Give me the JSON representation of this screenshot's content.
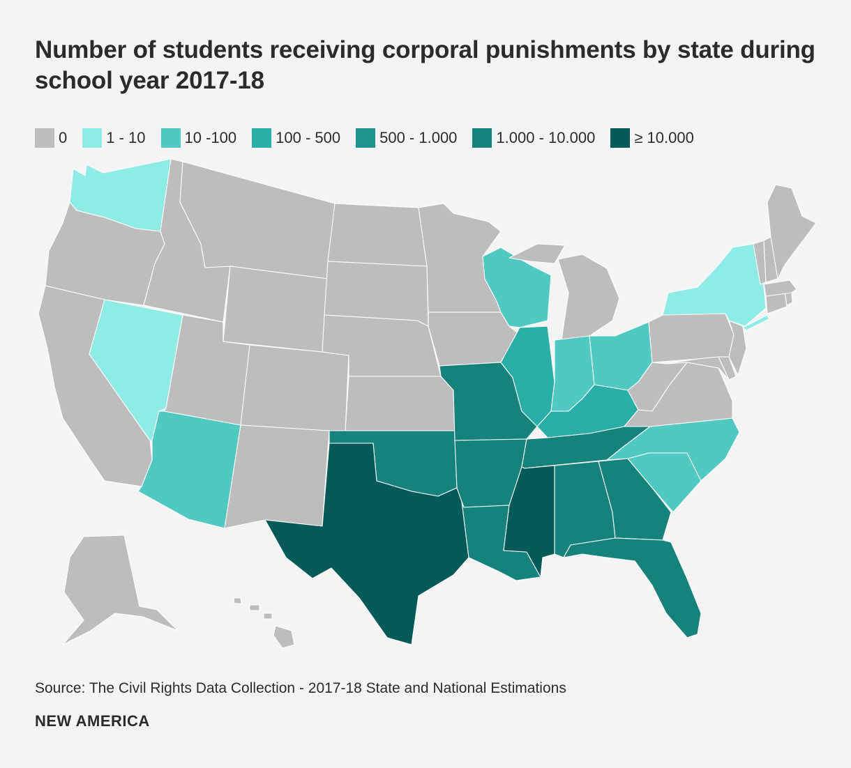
{
  "title": "Number of students receiving corporal punishments by state during school year 2017-18",
  "legend": [
    {
      "label": "0",
      "color": "#bdbdbd"
    },
    {
      "label": "1 - 10",
      "color": "#8eebe5"
    },
    {
      "label": "10 -100",
      "color": "#4fc9c1"
    },
    {
      "label": "100 - 500",
      "color": "#2aaea8"
    },
    {
      "label": "500 - 1.000",
      "color": "#1f948e"
    },
    {
      "label": "1.000 - 10.000",
      "color": "#16827c"
    },
    {
      "label": "≥ 10.000",
      "color": "#035a58"
    }
  ],
  "map_data": {
    "states": {
      "WA": 1,
      "OR": 0,
      "CA": 0,
      "NV": 1,
      "ID": 0,
      "MT": 0,
      "WY": 0,
      "UT": 0,
      "AZ": 2,
      "CO": 0,
      "NM": 0,
      "ND": 0,
      "SD": 0,
      "NE": 0,
      "KS": 0,
      "OK": 5,
      "TX": 6,
      "MN": 0,
      "IA": 0,
      "MO": 5,
      "AR": 5,
      "LA": 5,
      "WI": 2,
      "IL": 3,
      "MI": 0,
      "IN": 2,
      "OH": 2,
      "KY": 3,
      "TN": 5,
      "MS": 6,
      "AL": 5,
      "GA": 5,
      "FL": 5,
      "SC": 2,
      "NC": 2,
      "VA": 0,
      "WV": 0,
      "MD": 0,
      "DE": 0,
      "PA": 0,
      "NJ": 0,
      "NY": 1,
      "CT": 0,
      "RI": 0,
      "MA": 0,
      "VT": 0,
      "NH": 0,
      "ME": 0,
      "AK": 0,
      "HI": 0
    }
  },
  "source": "Source: The Civil Rights Data Collection - 2017-18 State and National Estimations",
  "brand": "NEW AMERICA"
}
